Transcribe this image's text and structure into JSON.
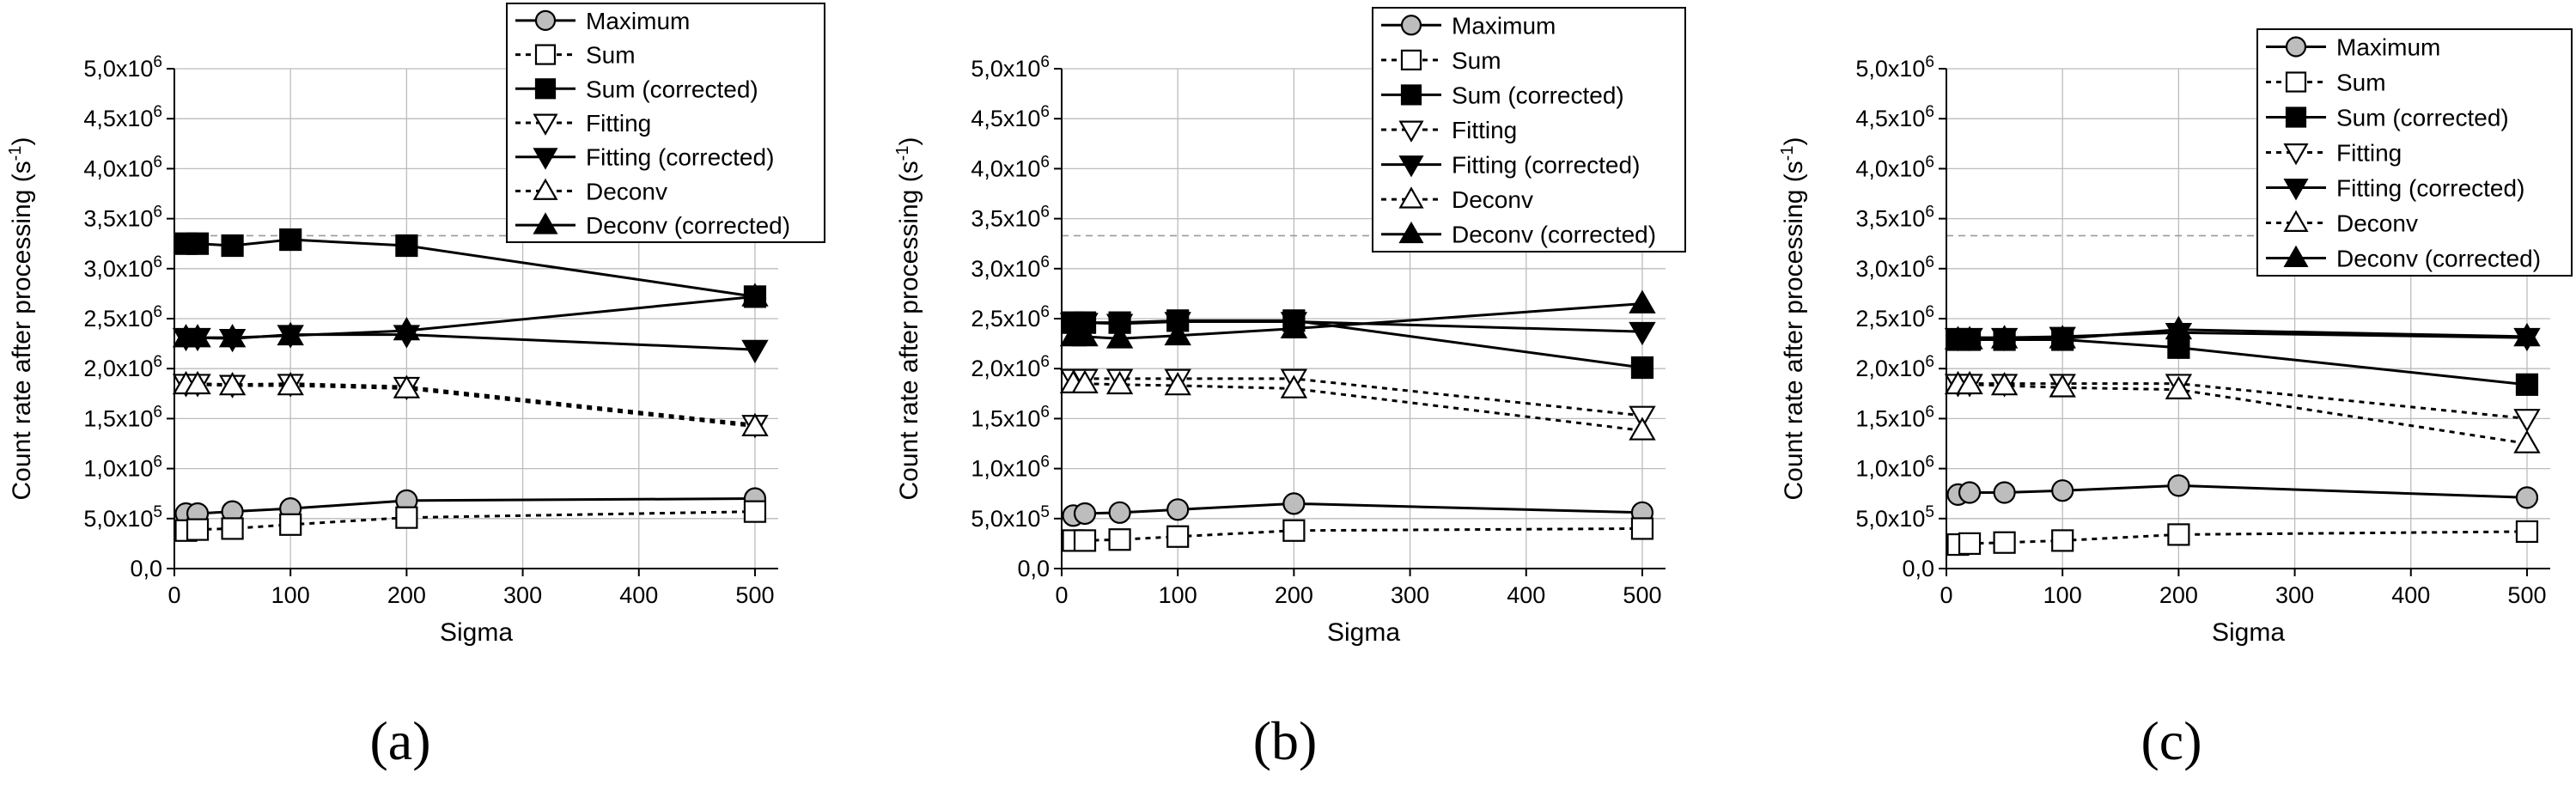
{
  "chart_data": [
    {
      "type": "line",
      "caption": "(a)",
      "xlabel": "Sigma",
      "ylabel": "Count rate after processing (s-1)",
      "xlim": [
        0,
        520
      ],
      "ylim": [
        0,
        5000000
      ],
      "xticks": [
        0,
        100,
        200,
        300,
        400,
        500
      ],
      "xtick_labels": [
        "0",
        "100",
        "200",
        "300",
        "400",
        "500"
      ],
      "yticks": [
        0,
        500000,
        1000000,
        1500000,
        2000000,
        2500000,
        3000000,
        3500000,
        4000000,
        4500000,
        5000000
      ],
      "ytick_labels": [
        "0,0",
        "5,0x10^5",
        "1,0x10^6",
        "1,5x10^6",
        "2,0x10^6",
        "2,5x10^6",
        "3,0x10^6",
        "3,5x10^6",
        "4,0x10^6",
        "4,5x10^6",
        "5,0x10^6"
      ],
      "grid": true,
      "legend_position": "top-right",
      "reference_line": 3330000,
      "x": [
        10,
        20,
        50,
        100,
        200,
        500
      ],
      "series": [
        {
          "name": "Maximum",
          "marker": "circle",
          "fill": "#bdbdbd",
          "values": [
            550000,
            550000,
            570000,
            600000,
            680000,
            700000
          ]
        },
        {
          "name": "Sum",
          "marker": "square",
          "fill": "#ffffff",
          "values": [
            380000,
            390000,
            400000,
            440000,
            510000,
            570000
          ]
        },
        {
          "name": "Sum (corrected)",
          "marker": "square",
          "fill": "#000000",
          "values": [
            3250000,
            3250000,
            3230000,
            3290000,
            3230000,
            2720000
          ]
        },
        {
          "name": "Fitting",
          "marker": "tri-down",
          "fill": "#ffffff",
          "values": [
            1850000,
            1850000,
            1840000,
            1850000,
            1820000,
            1440000
          ]
        },
        {
          "name": "Fitting (corrected)",
          "marker": "tri-down",
          "fill": "#000000",
          "values": [
            2310000,
            2310000,
            2300000,
            2340000,
            2340000,
            2190000
          ]
        },
        {
          "name": "Deconv",
          "marker": "tri-up",
          "fill": "#ffffff",
          "values": [
            1840000,
            1840000,
            1830000,
            1830000,
            1800000,
            1420000
          ]
        },
        {
          "name": "Deconv (corrected)",
          "marker": "tri-up",
          "fill": "#000000",
          "values": [
            2310000,
            2310000,
            2310000,
            2330000,
            2380000,
            2720000
          ]
        }
      ]
    },
    {
      "type": "line",
      "caption": "(b)",
      "xlabel": "Sigma",
      "ylabel": "Count rate after processing (s-1)",
      "xlim": [
        0,
        520
      ],
      "ylim": [
        0,
        5000000
      ],
      "xticks": [
        0,
        100,
        200,
        300,
        400,
        500
      ],
      "xtick_labels": [
        "0",
        "100",
        "200",
        "300",
        "400",
        "500"
      ],
      "yticks": [
        0,
        500000,
        1000000,
        1500000,
        2000000,
        2500000,
        3000000,
        3500000,
        4000000,
        4500000,
        5000000
      ],
      "ytick_labels": [
        "0,0",
        "5,0x10^5",
        "1,0x10^6",
        "1,5x10^6",
        "2,0x10^6",
        "2,5x10^6",
        "3,0x10^6",
        "3,5x10^6",
        "4,0x10^6",
        "4,5x10^6",
        "5,0x10^6"
      ],
      "grid": true,
      "legend_position": "top-right",
      "reference_line": 3330000,
      "x": [
        10,
        20,
        50,
        100,
        200,
        500
      ],
      "series": [
        {
          "name": "Maximum",
          "marker": "circle",
          "fill": "#bdbdbd",
          "values": [
            530000,
            550000,
            560000,
            590000,
            650000,
            560000
          ]
        },
        {
          "name": "Sum",
          "marker": "square",
          "fill": "#ffffff",
          "values": [
            280000,
            280000,
            290000,
            320000,
            380000,
            400000
          ]
        },
        {
          "name": "Sum (corrected)",
          "marker": "square",
          "fill": "#000000",
          "values": [
            2460000,
            2460000,
            2460000,
            2480000,
            2480000,
            2010000
          ]
        },
        {
          "name": "Fitting",
          "marker": "tri-down",
          "fill": "#ffffff",
          "values": [
            1900000,
            1900000,
            1900000,
            1900000,
            1900000,
            1530000
          ]
        },
        {
          "name": "Fitting (corrected)",
          "marker": "tri-down",
          "fill": "#000000",
          "values": [
            2460000,
            2460000,
            2450000,
            2470000,
            2470000,
            2370000
          ]
        },
        {
          "name": "Deconv",
          "marker": "tri-up",
          "fill": "#ffffff",
          "values": [
            1850000,
            1850000,
            1840000,
            1830000,
            1800000,
            1380000
          ]
        },
        {
          "name": "Deconv (corrected)",
          "marker": "tri-up",
          "fill": "#000000",
          "values": [
            2320000,
            2320000,
            2300000,
            2330000,
            2400000,
            2650000
          ]
        }
      ]
    },
    {
      "type": "line",
      "caption": "(c)",
      "xlabel": "Sigma",
      "ylabel": "Count rate after processing (s-1)",
      "xlim": [
        0,
        520
      ],
      "ylim": [
        0,
        5000000
      ],
      "xticks": [
        0,
        100,
        200,
        300,
        400,
        500
      ],
      "xtick_labels": [
        "0",
        "100",
        "200",
        "300",
        "400",
        "500"
      ],
      "yticks": [
        0,
        500000,
        1000000,
        1500000,
        2000000,
        2500000,
        3000000,
        3500000,
        4000000,
        4500000,
        5000000
      ],
      "ytick_labels": [
        "0,0",
        "5,0x10^5",
        "1,0x10^6",
        "1,5x10^6",
        "2,0x10^6",
        "2,5x10^6",
        "3,0x10^6",
        "3,5x10^6",
        "4,0x10^6",
        "4,5x10^6",
        "5,0x10^6"
      ],
      "grid": true,
      "legend_position": "top-right",
      "reference_line": 3330000,
      "x": [
        10,
        20,
        50,
        100,
        200,
        500
      ],
      "series": [
        {
          "name": "Maximum",
          "marker": "circle",
          "fill": "#bdbdbd",
          "values": [
            740000,
            760000,
            760000,
            780000,
            830000,
            710000
          ]
        },
        {
          "name": "Sum",
          "marker": "square",
          "fill": "#ffffff",
          "values": [
            240000,
            250000,
            260000,
            280000,
            340000,
            370000
          ]
        },
        {
          "name": "Sum (corrected)",
          "marker": "square",
          "fill": "#000000",
          "values": [
            2290000,
            2290000,
            2290000,
            2290000,
            2210000,
            1840000
          ]
        },
        {
          "name": "Fitting",
          "marker": "tri-down",
          "fill": "#ffffff",
          "values": [
            1850000,
            1850000,
            1850000,
            1850000,
            1850000,
            1500000
          ]
        },
        {
          "name": "Fitting (corrected)",
          "marker": "tri-down",
          "fill": "#000000",
          "values": [
            2310000,
            2310000,
            2310000,
            2320000,
            2360000,
            2310000
          ]
        },
        {
          "name": "Deconv",
          "marker": "tri-up",
          "fill": "#ffffff",
          "values": [
            1840000,
            1840000,
            1830000,
            1810000,
            1790000,
            1250000
          ]
        },
        {
          "name": "Deconv (corrected)",
          "marker": "tri-up",
          "fill": "#000000",
          "values": [
            2290000,
            2290000,
            2300000,
            2300000,
            2390000,
            2320000
          ]
        }
      ]
    }
  ]
}
